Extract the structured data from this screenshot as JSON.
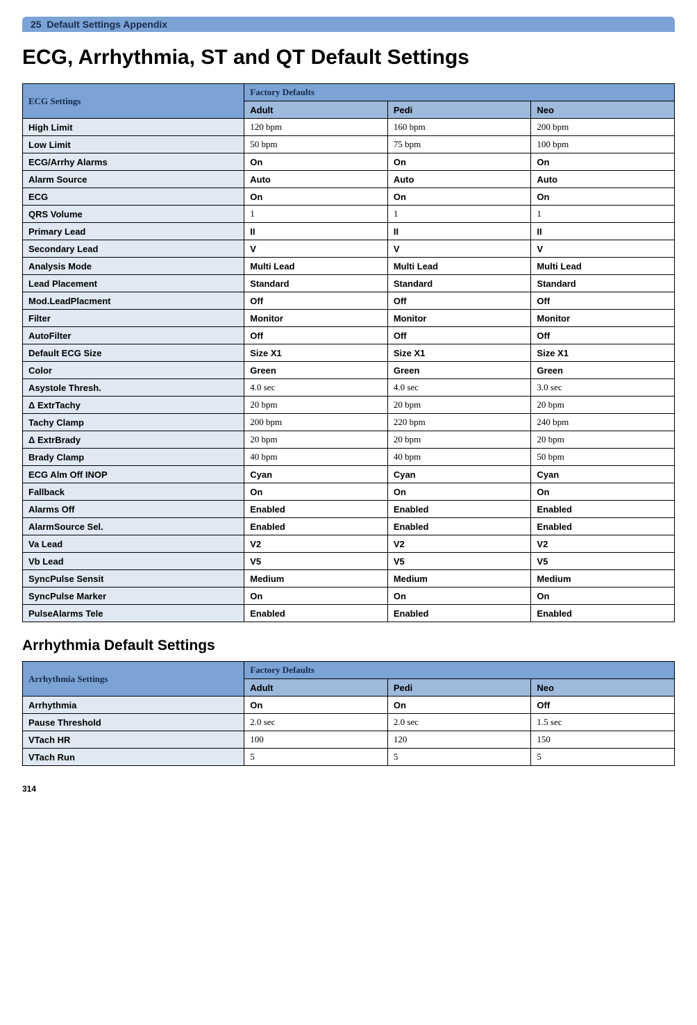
{
  "header": {
    "chapter": "25",
    "section": "Default Settings Appendix"
  },
  "title": "ECG, Arrhythmia, ST and QT Default Settings",
  "ecg_table": {
    "header": {
      "label": "ECG Settings",
      "top": "Factory Defaults",
      "cols": [
        "Adult",
        "Pedi",
        "Neo"
      ]
    },
    "rows": [
      {
        "name": "High Limit",
        "vals": [
          "120 bpm",
          "160 bpm",
          "200 bpm"
        ],
        "style": "serif"
      },
      {
        "name": "Low Limit",
        "vals": [
          "50 bpm",
          "75 bpm",
          "100 bpm"
        ],
        "style": "serif"
      },
      {
        "name": "ECG/Arrhy Alarms",
        "vals": [
          "On",
          "On",
          "On"
        ],
        "style": "bold"
      },
      {
        "name": "Alarm Source",
        "vals": [
          "Auto",
          "Auto",
          "Auto"
        ],
        "style": "bold"
      },
      {
        "name": "ECG",
        "vals": [
          "On",
          "On",
          "On"
        ],
        "style": "bold"
      },
      {
        "name": "QRS Volume",
        "vals": [
          "1",
          "1",
          "1"
        ],
        "style": "serif"
      },
      {
        "name": "Primary Lead",
        "vals": [
          "II",
          "II",
          "II"
        ],
        "style": "bold"
      },
      {
        "name": "Secondary Lead",
        "vals": [
          "V",
          "V",
          "V"
        ],
        "style": "bold"
      },
      {
        "name": "Analysis Mode",
        "vals": [
          "Multi Lead",
          "Multi Lead",
          "Multi Lead"
        ],
        "style": "bold"
      },
      {
        "name": "Lead Placement",
        "vals": [
          "Standard",
          "Standard",
          "Standard"
        ],
        "style": "bold"
      },
      {
        "name": "Mod.LeadPlacment",
        "vals": [
          "Off",
          "Off",
          "Off"
        ],
        "style": "bold"
      },
      {
        "name": "Filter",
        "vals": [
          "Monitor",
          "Monitor",
          "Monitor"
        ],
        "style": "bold"
      },
      {
        "name": "AutoFilter",
        "vals": [
          "Off",
          "Off",
          "Off"
        ],
        "style": "bold"
      },
      {
        "name": "Default ECG Size",
        "vals": [
          "Size X1",
          "Size X1",
          "Size X1"
        ],
        "style": "bold"
      },
      {
        "name": "Color",
        "vals": [
          "Green",
          "Green",
          "Green"
        ],
        "style": "bold"
      },
      {
        "name": "Asystole Thresh.",
        "vals": [
          "4.0 sec",
          "4.0 sec",
          "3.0 sec"
        ],
        "style": "serif"
      },
      {
        "name": " Δ ExtrTachy",
        "vals": [
          "20 bpm",
          "20 bpm",
          "20 bpm"
        ],
        "style": "serif"
      },
      {
        "name": "Tachy Clamp",
        "vals": [
          "200 bpm",
          "220 bpm",
          "240 bpm"
        ],
        "style": "serif"
      },
      {
        "name": "Δ ExtrBrady",
        "vals": [
          "20 bpm",
          "20 bpm",
          "20 bpm"
        ],
        "style": "serif"
      },
      {
        "name": "Brady Clamp",
        "vals": [
          "40 bpm",
          "40 bpm",
          "50 bpm"
        ],
        "style": "serif"
      },
      {
        "name": "ECG Alm Off INOP",
        "vals": [
          "Cyan",
          "Cyan",
          "Cyan"
        ],
        "style": "bold"
      },
      {
        "name": "Fallback",
        "vals": [
          "On",
          "On",
          "On"
        ],
        "style": "bold"
      },
      {
        "name": "Alarms Off",
        "vals": [
          "Enabled",
          "Enabled",
          "Enabled"
        ],
        "style": "bold"
      },
      {
        "name": "AlarmSource Sel.",
        "vals": [
          "Enabled",
          "Enabled",
          "Enabled"
        ],
        "style": "bold"
      },
      {
        "name": "Va Lead",
        "vals": [
          "V2",
          "V2",
          "V2"
        ],
        "style": "bold"
      },
      {
        "name": "Vb Lead",
        "vals": [
          "V5",
          "V5",
          "V5"
        ],
        "style": "bold"
      },
      {
        "name": "SyncPulse Sensit",
        "vals": [
          "Medium",
          "Medium",
          "Medium"
        ],
        "style": "bold"
      },
      {
        "name": "SyncPulse Marker",
        "vals": [
          "On",
          "On",
          "On"
        ],
        "style": "bold"
      },
      {
        "name": "PulseAlarms Tele",
        "vals": [
          "Enabled",
          "Enabled",
          "Enabled"
        ],
        "style": "bold"
      }
    ]
  },
  "arr_heading": "Arrhythmia Default Settings",
  "arr_table": {
    "header": {
      "label": "Arrhythmia Settings",
      "top": "Factory Defaults",
      "cols": [
        "Adult",
        "Pedi",
        "Neo"
      ]
    },
    "rows": [
      {
        "name": "Arrhythmia",
        "vals": [
          "On",
          "On",
          "Off"
        ],
        "style": "bold"
      },
      {
        "name": "Pause Threshold",
        "vals": [
          "2.0 sec",
          "2.0 sec",
          "1.5 sec"
        ],
        "style": "serif"
      },
      {
        "name": "VTach HR",
        "vals": [
          "100",
          "120",
          "150"
        ],
        "style": "serif"
      },
      {
        "name": "VTach Run",
        "vals": [
          "5",
          "5",
          "5"
        ],
        "style": "serif"
      }
    ]
  },
  "page_number": "314"
}
